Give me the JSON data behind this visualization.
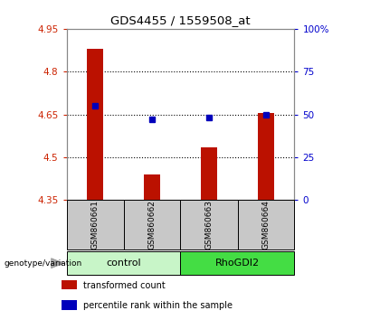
{
  "title": "GDS4455 / 1559508_at",
  "samples": [
    "GSM860661",
    "GSM860662",
    "GSM860663",
    "GSM860664"
  ],
  "bar_values": [
    4.88,
    4.44,
    4.535,
    4.655
  ],
  "percentile_values": [
    55,
    47,
    48,
    50
  ],
  "ylim_left": [
    4.35,
    4.95
  ],
  "ylim_right": [
    0,
    100
  ],
  "yticks_left": [
    4.35,
    4.5,
    4.65,
    4.8,
    4.95
  ],
  "yticks_right": [
    0,
    25,
    50,
    75,
    100
  ],
  "ytick_labels_left": [
    "4.35",
    "4.5",
    "4.65",
    "4.8",
    "4.95"
  ],
  "ytick_labels_right": [
    "0",
    "25",
    "50",
    "75",
    "100%"
  ],
  "groups": [
    {
      "label": "control",
      "samples": [
        0,
        1
      ],
      "color": "#c8f5c8"
    },
    {
      "label": "RhoGDI2",
      "samples": [
        2,
        3
      ],
      "color": "#44dd44"
    }
  ],
  "bar_color": "#bb1100",
  "percentile_color": "#0000bb",
  "bar_width": 0.3,
  "group_label": "genotype/variation",
  "legend_items": [
    {
      "label": "transformed count",
      "color": "#bb1100"
    },
    {
      "label": "percentile rank within the sample",
      "color": "#0000bb"
    }
  ],
  "left_tick_color": "#cc2200",
  "right_tick_color": "#0000cc",
  "sample_box_color": "#c8c8c8",
  "spine_color": "#888888"
}
